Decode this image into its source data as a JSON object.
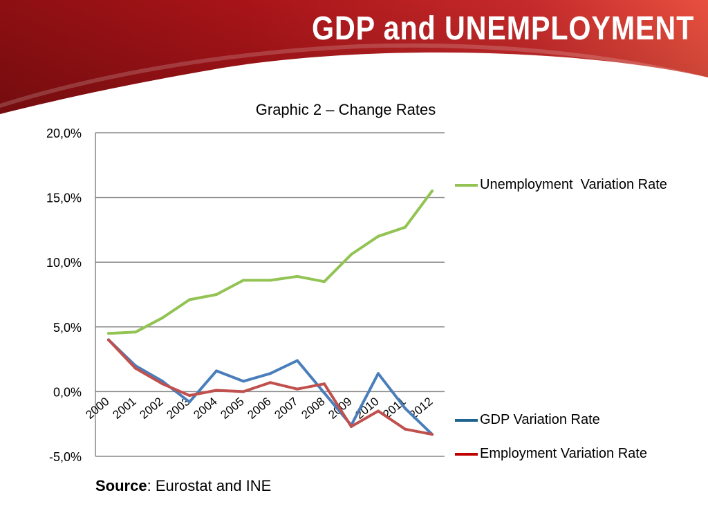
{
  "slide": {
    "title": "GDP  and  UNEMPLOYMENT"
  },
  "chart_data": {
    "type": "line",
    "title": "Graphic 2 – Change Rates",
    "xlabel": "",
    "ylabel": "",
    "categories": [
      "2000",
      "2001",
      "2002",
      "2003",
      "2004",
      "2005",
      "2006",
      "2007",
      "2008",
      "2009",
      "2010",
      "2011",
      "2012"
    ],
    "ylim": [
      -5,
      20
    ],
    "yticks": [
      20,
      15,
      10,
      5,
      0,
      -5
    ],
    "ytick_labels": [
      "20,0%",
      "15,0%",
      "10,0%",
      "5,0%",
      "0,0%",
      "-5,0%"
    ],
    "grid": true,
    "legend_placement": "right",
    "series": [
      {
        "name": "Unemployment  Variation Rate",
        "color": "#92c353",
        "values": [
          4.5,
          4.6,
          5.7,
          7.1,
          7.5,
          8.6,
          8.6,
          8.9,
          8.5,
          10.6,
          12.0,
          12.7,
          15.5
        ]
      },
      {
        "name": "GDP Variation Rate",
        "color": "#4a7ebb",
        "legend_color": "#1f6391",
        "values": [
          4.0,
          2.0,
          0.8,
          -0.8,
          1.6,
          0.8,
          1.4,
          2.4,
          -0.1,
          -2.6,
          1.4,
          -1.3,
          -3.3
        ]
      },
      {
        "name": "Employment Variation Rate",
        "color": "#c0504d",
        "legend_color": "#c00000",
        "values": [
          4.0,
          1.8,
          0.6,
          -0.3,
          0.1,
          0.0,
          0.7,
          0.2,
          0.6,
          -2.7,
          -1.5,
          -2.9,
          -3.3
        ]
      }
    ]
  },
  "source": {
    "label": "Source",
    "text": ": Eurostat and INE"
  }
}
